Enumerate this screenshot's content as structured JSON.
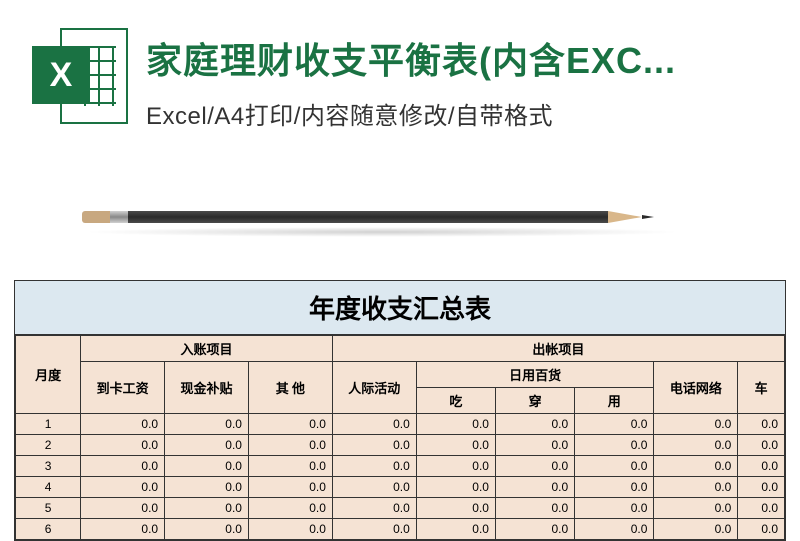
{
  "header": {
    "title": "家庭理财收支平衡表(内含EXC...",
    "subtitle": "Excel/A4打印/内容随意修改/自带格式",
    "icon_letter": "X",
    "icon_bg": "#1a7243",
    "icon_fg": "#ffffff"
  },
  "sheet": {
    "title": "年度收支汇总表",
    "title_bg": "#dce8f0",
    "header_bg": "#f5e3d4",
    "border_color": "#333333",
    "font_family": "SimSun",
    "col_month": "月度",
    "group_income": "入账项目",
    "group_expense": "出帐项目",
    "income_cols": [
      "到卡工资",
      "现金补贴",
      "其    他"
    ],
    "expense_group_daily": "日用百货",
    "expense_cols_before": [
      "人际活动"
    ],
    "expense_daily_cols": [
      "吃",
      "穿",
      "用"
    ],
    "expense_cols_after": [
      "电话网络",
      "车"
    ],
    "rows": [
      {
        "month": "1",
        "vals": [
          "0.0",
          "0.0",
          "0.0",
          "0.0",
          "0.0",
          "0.0",
          "0.0",
          "0.0",
          "0.0"
        ]
      },
      {
        "month": "2",
        "vals": [
          "0.0",
          "0.0",
          "0.0",
          "0.0",
          "0.0",
          "0.0",
          "0.0",
          "0.0",
          "0.0"
        ]
      },
      {
        "month": "3",
        "vals": [
          "0.0",
          "0.0",
          "0.0",
          "0.0",
          "0.0",
          "0.0",
          "0.0",
          "0.0",
          "0.0"
        ]
      },
      {
        "month": "4",
        "vals": [
          "0.0",
          "0.0",
          "0.0",
          "0.0",
          "0.0",
          "0.0",
          "0.0",
          "0.0",
          "0.0"
        ]
      },
      {
        "month": "5",
        "vals": [
          "0.0",
          "0.0",
          "0.0",
          "0.0",
          "0.0",
          "0.0",
          "0.0",
          "0.0",
          "0.0"
        ]
      },
      {
        "month": "6",
        "vals": [
          "0.0",
          "0.0",
          "0.0",
          "0.0",
          "0.0",
          "0.0",
          "0.0",
          "0.0",
          "0.0"
        ]
      }
    ]
  },
  "colors": {
    "brand_green": "#1a7243",
    "page_bg": "#ffffff"
  }
}
